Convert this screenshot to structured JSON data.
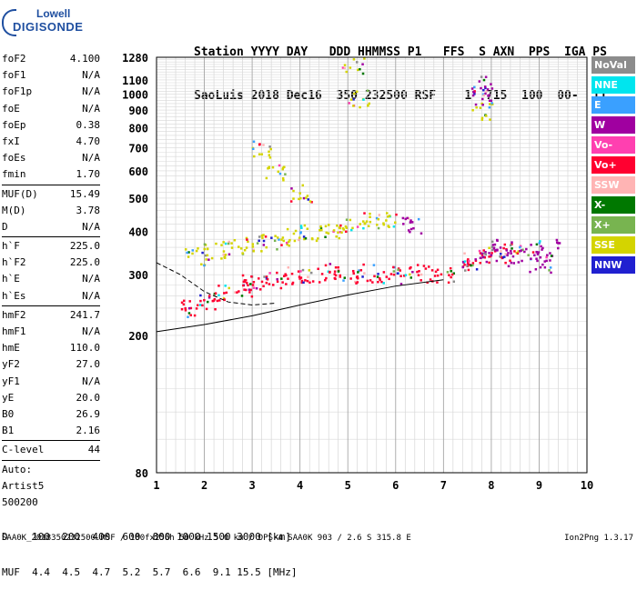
{
  "logo": {
    "line1": "Lowell",
    "line2": "DIGISONDE"
  },
  "header": {
    "row1": "Station YYYY DAY   DDD HHMMSS P1   FFS  S AXN  PPS  IGA PS",
    "row2": "SaoLuis 2018 Dec16  350 232500 RSF    1  715  100  00-  11"
  },
  "params": [
    {
      "k": "foF2",
      "v": "4.100"
    },
    {
      "k": "foF1",
      "v": "N/A"
    },
    {
      "k": "foF1p",
      "v": "N/A"
    },
    {
      "k": "foE",
      "v": "N/A"
    },
    {
      "k": "foEp",
      "v": "0.38"
    },
    {
      "k": "fxI",
      "v": "4.70"
    },
    {
      "k": "foEs",
      "v": "N/A"
    },
    {
      "k": "fmin",
      "v": "1.70",
      "sep": true
    },
    {
      "k": "MUF(D)",
      "v": "15.49"
    },
    {
      "k": "M(D)",
      "v": "3.78"
    },
    {
      "k": "D",
      "v": "N/A",
      "sep": true
    },
    {
      "k": "h`F",
      "v": "225.0"
    },
    {
      "k": "h`F2",
      "v": "225.0"
    },
    {
      "k": "h`E",
      "v": "N/A"
    },
    {
      "k": "h`Es",
      "v": "N/A",
      "sep": true
    },
    {
      "k": "hmF2",
      "v": "241.7"
    },
    {
      "k": "hmF1",
      "v": "N/A"
    },
    {
      "k": "hmE",
      "v": "110.0"
    },
    {
      "k": "yF2",
      "v": "27.0"
    },
    {
      "k": "yF1",
      "v": "N/A"
    },
    {
      "k": "yE",
      "v": "20.0"
    },
    {
      "k": "B0",
      "v": "26.9"
    },
    {
      "k": "B1",
      "v": "2.16",
      "sep": true
    },
    {
      "k": "C-level",
      "v": "44",
      "sep": true
    },
    {
      "k": "Auto:",
      "v": ""
    },
    {
      "k": "Artist5",
      "v": ""
    },
    {
      "k": "500200",
      "v": ""
    }
  ],
  "legend": [
    {
      "label": "NoVal",
      "color": "#8c8c8c"
    },
    {
      "label": "NNE",
      "color": "#00e5ee"
    },
    {
      "label": "E",
      "color": "#3aa0ff"
    },
    {
      "label": "W",
      "color": "#a000a0"
    },
    {
      "label": "Vo-",
      "color": "#ff40b0"
    },
    {
      "label": "Vo+",
      "color": "#ff0030"
    },
    {
      "label": "SSW",
      "color": "#ffb4b4"
    },
    {
      "label": "X-",
      "color": "#007800"
    },
    {
      "label": "X+",
      "color": "#78b450"
    },
    {
      "label": "SSE",
      "color": "#d4d400"
    },
    {
      "label": "NNW",
      "color": "#2020d0"
    }
  ],
  "dmuf": {
    "drow": "D    100  200  400  600  800 1000 1500 3000 [km]",
    "mrow": "MUF  4.4  4.5  4.7  5.2  5.7  6.6  9.1 15.5 [MHz]"
  },
  "footer": {
    "left": "SAA0K_2018350232500.RSF / 180fx256h 50 kHz 5.0 km / DPS-4 SAA0K 903 / 2.6 S 315.8 E",
    "version": "Ion2Png 1.3.17"
  },
  "chart_data": {
    "type": "scatter",
    "title": "",
    "xlabel": "",
    "ylabel": "",
    "xlim": [
      1,
      10
    ],
    "ylim": [
      80,
      1280
    ],
    "x_ticks": [
      1,
      2,
      3,
      4,
      5,
      6,
      7,
      8,
      9,
      10
    ],
    "y_ticks": [
      80,
      200,
      300,
      400,
      500,
      600,
      700,
      800,
      900,
      1000,
      1100,
      1280
    ],
    "y_scale": "log",
    "grid": true,
    "series": [
      {
        "name": "Vo+",
        "color": "#ff0030",
        "points": [
          [
            1.7,
            240
          ],
          [
            2.0,
            255
          ],
          [
            2.4,
            270
          ],
          [
            2.8,
            275
          ],
          [
            3.0,
            285
          ],
          [
            3.4,
            290
          ],
          [
            3.8,
            300
          ],
          [
            4.2,
            305
          ],
          [
            4.6,
            310
          ],
          [
            5.0,
            300
          ],
          [
            5.4,
            305
          ],
          [
            5.8,
            300
          ],
          [
            6.2,
            300
          ],
          [
            6.6,
            305
          ],
          [
            7.0,
            300
          ],
          [
            7.6,
            330
          ],
          [
            8.0,
            340
          ],
          [
            8.4,
            350
          ]
        ]
      },
      {
        "name": "SSE",
        "color": "#d4d400",
        "points": [
          [
            1.8,
            340
          ],
          [
            2.2,
            355
          ],
          [
            2.6,
            360
          ],
          [
            3.0,
            370
          ],
          [
            3.4,
            380
          ],
          [
            3.8,
            390
          ],
          [
            4.2,
            400
          ],
          [
            4.6,
            410
          ],
          [
            5.0,
            420
          ],
          [
            5.4,
            430
          ],
          [
            5.8,
            440
          ],
          [
            4.0,
            520
          ],
          [
            3.5,
            600
          ],
          [
            3.2,
            700
          ],
          [
            5.2,
            980
          ],
          [
            5.1,
            1230
          ],
          [
            7.8,
            900
          ]
        ]
      },
      {
        "name": "W",
        "color": "#a000a0",
        "points": [
          [
            7.6,
            330
          ],
          [
            7.9,
            350
          ],
          [
            8.2,
            360
          ],
          [
            8.5,
            340
          ],
          [
            8.8,
            350
          ],
          [
            9.2,
            360
          ],
          [
            7.8,
            1070
          ],
          [
            7.8,
            1000
          ],
          [
            9.0,
            320
          ],
          [
            6.3,
            420
          ]
        ]
      }
    ]
  }
}
